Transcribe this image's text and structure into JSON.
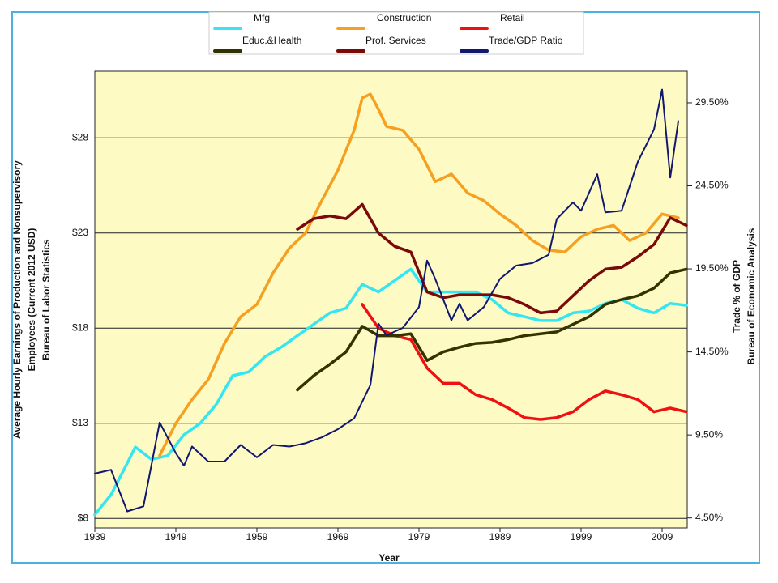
{
  "chart_data": {
    "type": "line",
    "x_label": "Year",
    "y_label": [
      "Average Hourly Earnings of Production and Nonsupervisory",
      "Employees (Current 2012 USD)",
      "Bureau of Labor Statistics"
    ],
    "y2_label": [
      "Trade % of GDP",
      "Bureau of Economic Analysis"
    ],
    "xlim": [
      1939,
      2012.1
    ],
    "xticks": [
      1939,
      1949,
      1959,
      1969,
      1979,
      1989,
      1999,
      2009
    ],
    "ylim": [
      7.5,
      31.5
    ],
    "yticks": [
      {
        "value": 8,
        "label": "$8"
      },
      {
        "value": 13,
        "label": "$13"
      },
      {
        "value": 18,
        "label": "$18"
      },
      {
        "value": 23,
        "label": "$23"
      },
      {
        "value": 28,
        "label": "$28"
      }
    ],
    "y2lim": [
      3.9,
      31.4
    ],
    "y2ticks": [
      {
        "value": 4.5,
        "label": "4.50%"
      },
      {
        "value": 9.5,
        "label": "9.50%"
      },
      {
        "value": 14.5,
        "label": "14.50%"
      },
      {
        "value": 19.5,
        "label": "19.50%"
      },
      {
        "value": 24.5,
        "label": "24.50%"
      },
      {
        "value": 29.5,
        "label": "29.50%"
      }
    ],
    "grid": true,
    "series": [
      {
        "name": "Mfg",
        "color": "#33e6f0",
        "x": [
          1939,
          1941,
          1943,
          1944,
          1946,
          1948,
          1950,
          1952,
          1954,
          1956,
          1958,
          1960,
          1962,
          1964,
          1966,
          1968,
          1970,
          1972,
          1974,
          1976,
          1978,
          1980,
          1982,
          1984,
          1986,
          1988,
          1990,
          1992,
          1994,
          1996,
          1998,
          2000,
          2002,
          2004,
          2006,
          2008,
          2010,
          2012
        ],
        "values": [
          8.2,
          9.25,
          10.9,
          11.75,
          11.1,
          11.3,
          12.4,
          13,
          14,
          15.5,
          15.7,
          16.5,
          17,
          17.6,
          18.2,
          18.8,
          19.05,
          20.3,
          19.9,
          20.5,
          21.1,
          19.9,
          19.9,
          19.9,
          19.9,
          19.5,
          18.8,
          18.6,
          18.4,
          18.4,
          18.8,
          18.9,
          19.3,
          19.5,
          19.05,
          18.8,
          19.3,
          19.2
        ]
      },
      {
        "name": "Construction",
        "color": "#f5a020",
        "x": [
          1947,
          1949,
          1951,
          1953,
          1955,
          1957,
          1959,
          1961,
          1963,
          1965,
          1967,
          1969,
          1971,
          1972,
          1973,
          1974,
          1975,
          1977,
          1979,
          1981,
          1983,
          1985,
          1987,
          1989,
          1991,
          1993,
          1995,
          1997,
          1999,
          2001,
          2003,
          2005,
          2007,
          2009,
          2011
        ],
        "values": [
          11.3,
          13,
          14.25,
          15.3,
          17.2,
          18.6,
          19.25,
          20.9,
          22.2,
          23,
          24.7,
          26.3,
          28.4,
          30.1,
          30.3,
          29.5,
          28.6,
          28.4,
          27.4,
          25.7,
          26.1,
          25.1,
          24.7,
          24,
          23.4,
          22.6,
          22.1,
          22,
          22.8,
          23.2,
          23.4,
          22.6,
          23,
          24,
          23.8
        ]
      },
      {
        "name": "Retail",
        "color": "#ee1111",
        "x": [
          1972,
          1974,
          1976,
          1978,
          1980,
          1982,
          1984,
          1986,
          1988,
          1990,
          1992,
          1994,
          1996,
          1998,
          2000,
          2002,
          2004,
          2006,
          2008,
          2010,
          2012
        ],
        "values": [
          19.25,
          18,
          17.6,
          17.4,
          15.9,
          15.1,
          15.1,
          14.5,
          14.25,
          13.8,
          13.3,
          13.2,
          13.3,
          13.6,
          14.25,
          14.7,
          14.5,
          14.25,
          13.6,
          13.8,
          13.6
        ]
      },
      {
        "name": "Educ.&Health",
        "color": "#333300",
        "x": [
          1964,
          1966,
          1968,
          1970,
          1972,
          1974,
          1976,
          1978,
          1980,
          1982,
          1984,
          1986,
          1988,
          1990,
          1992,
          1994,
          1996,
          1998,
          2000,
          2002,
          2004,
          2006,
          2008,
          2010,
          2012
        ],
        "values": [
          14.75,
          15.5,
          16.1,
          16.75,
          18.1,
          17.6,
          17.6,
          17.7,
          16.3,
          16.75,
          17,
          17.2,
          17.25,
          17.4,
          17.6,
          17.7,
          17.8,
          18.2,
          18.6,
          19.25,
          19.5,
          19.7,
          20.1,
          20.9,
          21.1
        ]
      },
      {
        "name": "Prof. Services",
        "color": "#7a0a0a",
        "x": [
          1964,
          1966,
          1968,
          1970,
          1972,
          1974,
          1976,
          1978,
          1980,
          1982,
          1984,
          1986,
          1988,
          1990,
          1992,
          1994,
          1996,
          1998,
          2000,
          2002,
          2004,
          2006,
          2008,
          2010,
          2012
        ],
        "values": [
          23.2,
          23.75,
          23.9,
          23.75,
          24.5,
          23,
          22.3,
          22,
          19.9,
          19.6,
          19.75,
          19.75,
          19.75,
          19.6,
          19.25,
          18.8,
          18.9,
          19.7,
          20.5,
          21.1,
          21.2,
          21.75,
          22.4,
          23.8,
          23.4
        ]
      },
      {
        "name": "Trade/GDP Ratio",
        "color": "#101870",
        "axis": "y2",
        "x": [
          1939,
          1941,
          1943,
          1945,
          1947,
          1949,
          1950,
          1951,
          1953,
          1955,
          1957,
          1959,
          1961,
          1963,
          1965,
          1967,
          1969,
          1971,
          1973,
          1974,
          1975,
          1977,
          1979,
          1980,
          1981,
          1983,
          1984,
          1985,
          1987,
          1989,
          1991,
          1993,
          1995,
          1996,
          1998,
          1999,
          2001,
          2002,
          2004,
          2006,
          2008,
          2009,
          2010,
          2011
        ],
        "values": [
          7.17,
          7.4,
          4.9,
          5.2,
          10.25,
          8.4,
          7.65,
          8.8,
          7.9,
          7.9,
          8.9,
          8.15,
          8.9,
          8.8,
          9,
          9.35,
          9.85,
          10.5,
          12.5,
          16.2,
          15.5,
          15.95,
          17.2,
          20,
          18.9,
          16.4,
          17.4,
          16.4,
          17.2,
          18.9,
          19.7,
          19.85,
          20.35,
          22.5,
          23.5,
          23,
          25.2,
          22.9,
          23,
          25.95,
          27.9,
          30.3,
          25,
          28.4
        ]
      }
    ]
  }
}
